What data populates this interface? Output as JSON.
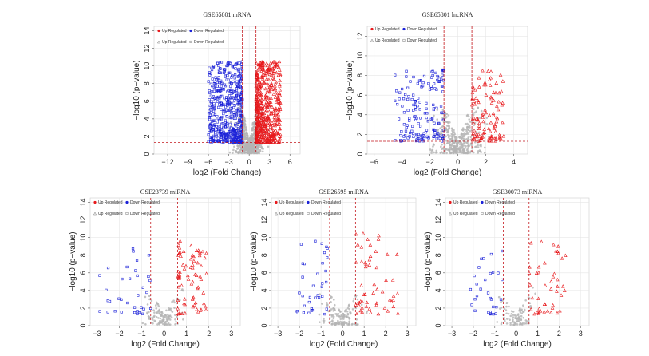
{
  "figure": {
    "description_panels": 5
  },
  "legend_labels": {
    "up": "Up Regulated",
    "down": "Down Regulated"
  },
  "colors": {
    "up": "#e8191c",
    "down": "#1c22d8",
    "ns": "#b4b4b4",
    "threshold": "#c4161c",
    "grid": "#e6e6e6"
  },
  "chart_data": [
    {
      "type": "scatter",
      "title": "GSE65801 mRNA",
      "xlabel": "log2 (Fold Change)",
      "ylabel": "−log10 (p−value)",
      "xlim": [
        -14,
        7.5
      ],
      "ylim": [
        0,
        14.5
      ],
      "xticks": [
        -12,
        -9,
        -6,
        -3,
        0,
        3,
        6
      ],
      "yticks": [
        0,
        2,
        4,
        6,
        8,
        10,
        12,
        14
      ],
      "fc_cutoff": [
        -1,
        1
      ],
      "p_cutoff": 1.3,
      "density": {
        "up": 520,
        "down": 520,
        "ns": 650
      },
      "spread": {
        "up_x": [
          1,
          4.6
        ],
        "down_x": [
          -6,
          -1
        ],
        "ymax": 10.5,
        "ns_x": 1.6
      },
      "seed": 11
    },
    {
      "type": "scatter",
      "title": "GSE65801 lncRNA",
      "xlabel": "log2 (Fold Change)",
      "ylabel": "−log10 (p−value)",
      "xlim": [
        -6.5,
        5
      ],
      "ylim": [
        0,
        13
      ],
      "xticks": [
        -6,
        -4,
        -2,
        0,
        2,
        4
      ],
      "yticks": [
        0,
        2,
        4,
        6,
        8,
        10,
        12
      ],
      "fc_cutoff": [
        -1,
        1
      ],
      "p_cutoff": 1.3,
      "density": {
        "up": 110,
        "down": 160,
        "ns": 420
      },
      "spread": {
        "up_x": [
          1,
          3.3
        ],
        "down_x": [
          -4.6,
          -1
        ],
        "ymax": 8.6,
        "ns_x": 1.3
      },
      "seed": 23
    },
    {
      "type": "scatter",
      "title": "GSE23739 miRNA",
      "xlabel": "log2 (Fold Change)",
      "ylabel": "−log10 (p−value)",
      "xlim": [
        -3.3,
        3.4
      ],
      "ylim": [
        0,
        14.5
      ],
      "xticks": [
        -3,
        -2,
        -1,
        0,
        1,
        2,
        3
      ],
      "yticks": [
        0,
        2,
        4,
        6,
        8,
        10,
        12,
        14
      ],
      "fc_cutoff": [
        -0.6,
        0.6
      ],
      "p_cutoff": 1.3,
      "density": {
        "up": 75,
        "down": 35,
        "ns": 140
      },
      "spread": {
        "up_x": [
          0.6,
          1.9
        ],
        "down_x": [
          -2.9,
          -0.6
        ],
        "ymax": 9.6,
        "ns_x": 0.6
      },
      "seed": 37
    },
    {
      "type": "scatter",
      "title": "GSE26595 miRNA",
      "xlabel": "log2 (Fold Change)",
      "ylabel": "−log10 (p−value)",
      "xlim": [
        -3.3,
        3.4
      ],
      "ylim": [
        0,
        14.5
      ],
      "xticks": [
        -3,
        -2,
        -1,
        0,
        1,
        2,
        3
      ],
      "yticks": [
        0,
        2,
        4,
        6,
        8,
        10,
        12,
        14
      ],
      "fc_cutoff": [
        -0.6,
        0.6
      ],
      "p_cutoff": 1.3,
      "density": {
        "up": 55,
        "down": 35,
        "ns": 150
      },
      "spread": {
        "up_x": [
          0.6,
          2.6
        ],
        "down_x": [
          -2.2,
          -0.6
        ],
        "ymax": 10.8,
        "ns_x": 0.7
      },
      "seed": 53
    },
    {
      "type": "scatter",
      "title": "GSE30073 miRNA",
      "xlabel": "log2 (Fold Change)",
      "ylabel": "−log10 (p−value)",
      "xlim": [
        -3.3,
        3.4
      ],
      "ylim": [
        0,
        14.5
      ],
      "xticks": [
        -3,
        -2,
        -1,
        0,
        1,
        2,
        3
      ],
      "yticks": [
        0,
        2,
        4,
        6,
        8,
        10,
        12,
        14
      ],
      "fc_cutoff": [
        -0.6,
        0.6
      ],
      "p_cutoff": 1.3,
      "density": {
        "up": 45,
        "down": 30,
        "ns": 110
      },
      "spread": {
        "up_x": [
          0.6,
          2.3
        ],
        "down_x": [
          -2.3,
          -0.6
        ],
        "ymax": 9.6,
        "ns_x": 0.6
      },
      "seed": 71
    }
  ]
}
